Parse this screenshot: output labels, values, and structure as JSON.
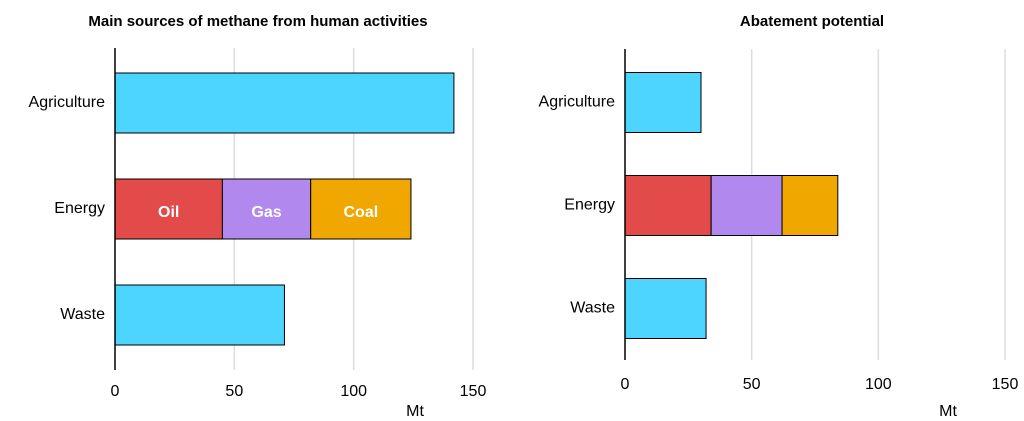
{
  "chart_data": [
    {
      "type": "stacked-bar-horizontal",
      "title": "Main sources of methane from human activities",
      "categories": [
        "Agriculture",
        "Energy",
        "Waste"
      ],
      "series": [
        {
          "color": "#4dd5ff",
          "values": [
            142,
            null,
            71
          ]
        },
        {
          "name": "Oil",
          "color": "#e34a4a",
          "values": [
            null,
            45,
            null
          ]
        },
        {
          "name": "Gas",
          "color": "#b088ee",
          "values": [
            null,
            37,
            null
          ]
        },
        {
          "name": "Coal",
          "color": "#f0a800",
          "values": [
            null,
            42,
            null
          ]
        }
      ],
      "xlabel": "Mt",
      "xlim": [
        0,
        150
      ],
      "xticks": [
        0,
        50,
        100,
        150
      ],
      "grid": true
    },
    {
      "type": "stacked-bar-horizontal",
      "title": "Abatement potential",
      "categories": [
        "Agriculture",
        "Energy",
        "Waste"
      ],
      "series": [
        {
          "color": "#4dd5ff",
          "values": [
            30,
            null,
            32
          ]
        },
        {
          "color": "#e34a4a",
          "values": [
            null,
            34,
            null
          ]
        },
        {
          "color": "#b088ee",
          "values": [
            null,
            28,
            null
          ]
        },
        {
          "color": "#f0a800",
          "values": [
            null,
            22,
            null
          ]
        }
      ],
      "xlabel": "Mt",
      "xlim": [
        0,
        150
      ],
      "xticks": [
        0,
        50,
        100,
        150
      ],
      "grid": true
    }
  ]
}
